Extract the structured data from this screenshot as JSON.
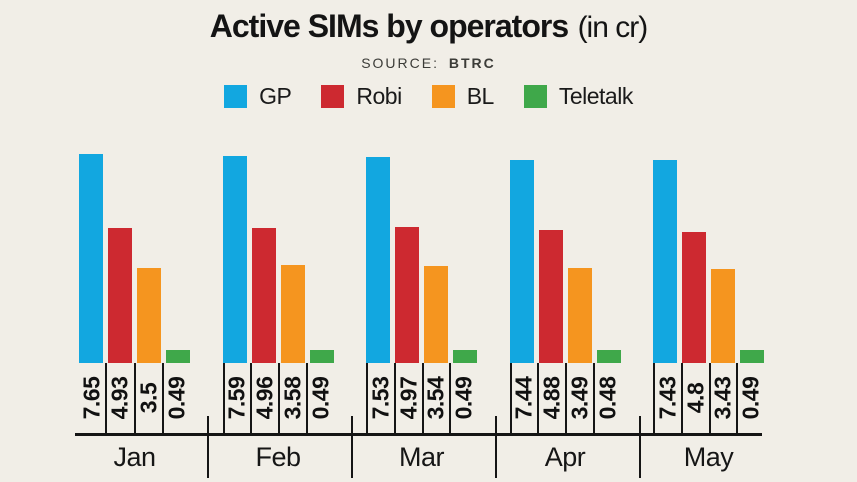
{
  "header": {
    "title": "Active SIMs by operators",
    "title_suffix": "(in cr)",
    "source_label": "SOURCE:",
    "source_value": "BTRC"
  },
  "colors": {
    "background": "#f1eee7",
    "axis": "#151515",
    "gp_blue": "#12a7e0",
    "robi_red": "#cd2930",
    "bl_orange": "#f5951f",
    "teletalk_green": "#3fa84a"
  },
  "chart_data": {
    "type": "bar",
    "title": "Active SIMs by operators (in cr)",
    "source": "BTRC",
    "categories": [
      "Jan",
      "Feb",
      "Mar",
      "Apr",
      "May"
    ],
    "series": [
      {
        "name": "GP",
        "color": "#12a7e0",
        "values": [
          7.65,
          7.59,
          7.53,
          7.44,
          7.43
        ]
      },
      {
        "name": "Robi",
        "color": "#cd2930",
        "values": [
          4.93,
          4.96,
          4.97,
          4.88,
          4.8
        ]
      },
      {
        "name": "BL",
        "color": "#f5951f",
        "values": [
          3.5,
          3.58,
          3.54,
          3.49,
          3.43
        ]
      },
      {
        "name": "Teletalk",
        "color": "#3fa84a",
        "values": [
          0.49,
          0.49,
          0.49,
          0.48,
          0.49
        ]
      }
    ],
    "xlabel": "",
    "ylabel": "",
    "ylim": [
      0,
      8.5
    ],
    "grid": false,
    "legend_position": "top",
    "value_labels": "rotated-90-below-bars"
  }
}
